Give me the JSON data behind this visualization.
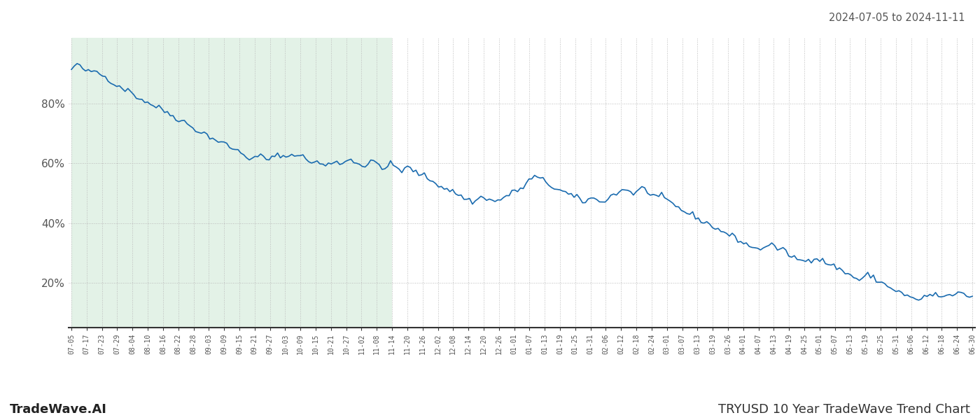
{
  "title_date_range": "2024-07-05 to 2024-11-11",
  "bottom_left_label": "TradeWave.AI",
  "bottom_right_label": "TRYUSD 10 Year TradeWave Trend Chart",
  "line_color": "#1a6baf",
  "line_width": 1.2,
  "shaded_region_color": "#cce8d4",
  "shaded_region_alpha": 0.55,
  "background_color": "#ffffff",
  "grid_color": "#bbbbbb",
  "grid_style": ":",
  "y_ticks": [
    20,
    40,
    60,
    80
  ],
  "y_tick_labels": [
    "20%",
    "40%",
    "60%",
    "80%"
  ],
  "ylim": [
    5,
    102
  ],
  "x_labels": [
    "07-05",
    "07-17",
    "07-23",
    "07-29",
    "08-04",
    "08-10",
    "08-16",
    "08-22",
    "08-28",
    "09-03",
    "09-09",
    "09-15",
    "09-21",
    "09-27",
    "10-03",
    "10-09",
    "10-15",
    "10-21",
    "10-27",
    "11-02",
    "11-08",
    "11-14",
    "11-20",
    "11-26",
    "12-02",
    "12-08",
    "12-14",
    "12-20",
    "12-26",
    "01-01",
    "01-07",
    "01-13",
    "01-19",
    "01-25",
    "01-31",
    "02-06",
    "02-12",
    "02-18",
    "02-24",
    "03-01",
    "03-07",
    "03-13",
    "03-19",
    "03-26",
    "04-01",
    "04-07",
    "04-13",
    "04-19",
    "04-25",
    "05-01",
    "05-07",
    "05-13",
    "05-19",
    "05-25",
    "05-31",
    "06-06",
    "06-12",
    "06-18",
    "06-24",
    "06-30"
  ],
  "shaded_x_start_label": "07-05",
  "shaded_x_end_label": "11-14",
  "y_values": [
    91.0,
    92.5,
    93.0,
    92.0,
    91.5,
    91.0,
    90.5,
    90.0,
    91.0,
    90.5,
    90.0,
    89.5,
    89.0,
    88.5,
    88.0,
    87.0,
    86.5,
    86.0,
    85.5,
    85.0,
    84.5,
    84.0,
    83.0,
    82.5,
    82.0,
    81.5,
    81.0,
    80.5,
    80.0,
    79.5,
    79.0,
    78.5,
    78.0,
    77.5,
    77.0,
    76.5,
    76.0,
    75.5,
    75.0,
    74.5,
    74.0,
    73.0,
    72.5,
    72.0,
    71.5,
    71.0,
    70.5,
    70.0,
    69.5,
    69.0,
    68.5,
    68.0,
    67.5,
    67.0,
    66.5,
    66.0,
    65.5,
    65.0,
    64.5,
    64.0,
    63.5,
    63.0,
    62.5,
    62.0,
    61.5,
    61.5,
    62.0,
    62.5,
    62.0,
    61.5,
    61.0,
    61.5,
    62.0,
    62.5,
    63.0,
    62.5,
    62.0,
    62.5,
    63.0,
    63.5,
    63.0,
    62.5,
    62.0,
    61.5,
    61.0,
    60.5,
    60.0,
    60.5,
    60.0,
    59.5,
    59.0,
    59.5,
    60.0,
    60.5,
    61.0,
    60.5,
    60.0,
    60.5,
    61.0,
    61.5,
    61.0,
    60.5,
    60.0,
    59.5,
    59.0,
    59.5,
    60.0,
    60.5,
    60.0,
    59.5,
    59.0,
    58.5,
    59.0,
    59.5,
    59.0,
    58.5,
    58.0,
    57.5,
    58.0,
    58.5,
    58.0,
    57.5,
    57.0,
    56.5,
    56.0,
    55.5,
    55.0,
    54.5,
    54.0,
    53.5,
    53.0,
    52.5,
    52.0,
    51.5,
    51.0,
    50.5,
    50.0,
    49.5,
    49.0,
    48.5,
    48.0,
    47.5,
    47.0,
    47.5,
    48.0,
    48.5,
    49.0,
    48.5,
    48.0,
    47.5,
    47.0,
    47.5,
    48.0,
    48.5,
    49.0,
    49.5,
    50.0,
    50.5,
    51.0,
    51.5,
    52.0,
    53.0,
    54.0,
    55.0,
    55.5,
    55.0,
    54.5,
    54.0,
    53.5,
    53.0,
    52.5,
    52.0,
    51.5,
    51.0,
    50.5,
    50.0,
    49.5,
    49.0,
    48.5,
    48.0,
    47.5,
    47.0,
    47.5,
    48.0,
    48.5,
    48.0,
    47.5,
    47.0,
    47.5,
    48.0,
    48.5,
    49.0,
    49.5,
    50.0,
    50.5,
    51.0,
    51.5,
    51.0,
    50.5,
    50.0,
    50.5,
    51.0,
    51.5,
    51.0,
    50.5,
    50.0,
    49.5,
    49.0,
    48.5,
    48.0,
    47.5,
    47.0,
    46.5,
    46.0,
    45.5,
    45.0,
    44.5,
    44.0,
    43.5,
    43.0,
    42.5,
    42.0,
    41.5,
    41.0,
    40.5,
    40.0,
    39.5,
    39.0,
    38.5,
    38.0,
    37.5,
    37.0,
    36.5,
    36.0,
    35.5,
    35.0,
    34.5,
    34.0,
    33.5,
    33.0,
    32.5,
    32.0,
    31.5,
    31.0,
    31.5,
    32.0,
    32.5,
    33.0,
    32.5,
    32.0,
    31.5,
    31.0,
    30.5,
    30.0,
    29.5,
    29.0,
    28.5,
    28.0,
    27.5,
    27.0,
    27.5,
    28.0,
    28.5,
    29.0,
    28.5,
    28.0,
    27.5,
    27.0,
    26.5,
    26.0,
    25.5,
    25.0,
    24.5,
    24.0,
    23.5,
    23.0,
    22.5,
    22.0,
    21.5,
    21.0,
    21.5,
    22.0,
    22.5,
    22.0,
    21.5,
    21.0,
    20.5,
    20.0,
    19.5,
    19.0,
    18.5,
    18.0,
    17.5,
    17.0,
    16.5,
    16.0,
    15.5,
    15.0,
    14.5,
    14.0,
    14.5,
    15.0,
    15.5,
    15.0,
    16.0,
    15.5,
    16.0,
    15.5,
    15.0,
    15.5,
    16.0,
    15.5,
    15.0,
    15.5,
    16.0,
    16.5,
    16.0,
    15.5,
    15.0,
    15.5
  ]
}
